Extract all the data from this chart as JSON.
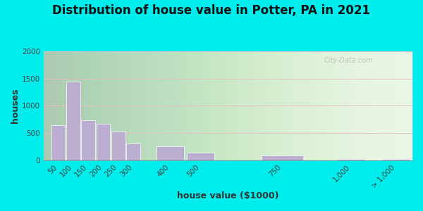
{
  "title": "Distribution of house value in Potter, PA in 2021",
  "xlabel": "house value ($1000)",
  "ylabel": "houses",
  "categories": [
    "50",
    "100",
    "150",
    "200",
    "250",
    "300",
    "400",
    "500",
    "750",
    "1,000",
    "> 1,000"
  ],
  "x_positions": [
    50,
    100,
    150,
    200,
    250,
    300,
    400,
    500,
    750,
    1000,
    1150
  ],
  "bar_widths": [
    50,
    50,
    50,
    50,
    50,
    50,
    100,
    100,
    150,
    100,
    100
  ],
  "values": [
    640,
    1450,
    740,
    670,
    530,
    305,
    255,
    140,
    95,
    30,
    30
  ],
  "bar_color": "#bbadd0",
  "bar_edge_color": "#ffffff",
  "background_outer": "#00eded",
  "background_inner": "#e8f5e2",
  "ylim": [
    0,
    2000
  ],
  "yticks": [
    0,
    500,
    1000,
    1500,
    2000
  ],
  "xlim_min": 25,
  "xlim_max": 1250,
  "title_fontsize": 12,
  "axis_label_fontsize": 9,
  "tick_fontsize": 7.5,
  "watermark": "City-Data.com"
}
